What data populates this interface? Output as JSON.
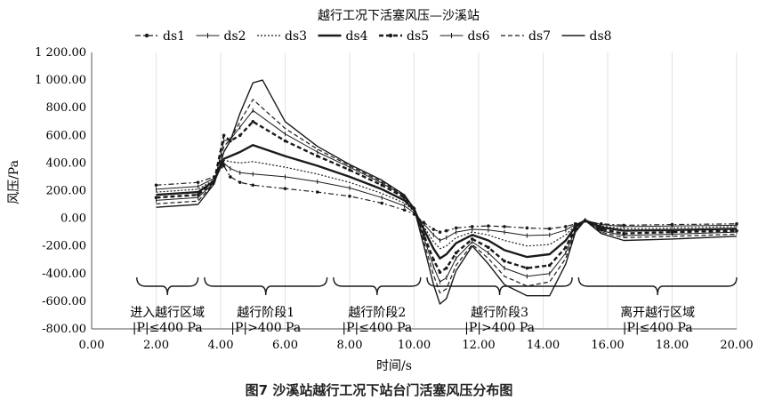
{
  "caption": "图7   沙溪站越行工况下站台门活塞风压分布图",
  "chart_data": {
    "type": "line",
    "title": "越行工况下活塞风压—沙溪站",
    "xlabel": "时间/s",
    "ylabel": "风压/Pa",
    "xlim": [
      0,
      20
    ],
    "ylim": [
      -800,
      1200
    ],
    "xticks": [
      "0.00",
      "2.00",
      "4.00",
      "6.00",
      "8.00",
      "10.00",
      "12.00",
      "14.00",
      "16.00",
      "18.00",
      "20.00"
    ],
    "yticks": [
      "-800.00",
      "-600.00",
      "-400.00",
      "-200.00",
      "0.00",
      "200.00",
      "400.00",
      "600.00",
      "800.00",
      "1 000.00",
      "1 200.00"
    ],
    "grid": "vertical",
    "legend_position": "top",
    "series": [
      {
        "name": "ds1",
        "style": "dashdot-marker",
        "x": [
          2.0,
          3.3,
          3.8,
          4.1,
          4.3,
          4.6,
          5.0,
          6.0,
          7.0,
          8.0,
          9.0,
          9.7,
          10.0,
          10.3,
          10.6,
          10.8,
          11.0,
          11.3,
          11.8,
          12.3,
          12.8,
          13.5,
          14.2,
          14.7,
          15.0,
          15.3,
          15.8,
          16.5,
          18.0,
          20.0
        ],
        "y": [
          240,
          260,
          300,
          380,
          300,
          260,
          240,
          215,
          190,
          160,
          110,
          60,
          30,
          -30,
          -80,
          -100,
          -90,
          -70,
          -60,
          -55,
          -60,
          -70,
          -75,
          -60,
          -40,
          -20,
          -40,
          -50,
          -45,
          -40
        ]
      },
      {
        "name": "ds2",
        "style": "solid-thin",
        "x": [
          2.0,
          3.3,
          3.8,
          4.1,
          4.3,
          4.6,
          5.0,
          6.0,
          7.0,
          8.0,
          9.0,
          9.7,
          10.0,
          10.3,
          10.6,
          10.8,
          11.0,
          11.3,
          11.8,
          12.3,
          12.8,
          13.5,
          14.2,
          14.7,
          15.0,
          15.3,
          15.8,
          16.5,
          18.0,
          20.0
        ],
        "y": [
          210,
          230,
          290,
          400,
          360,
          330,
          320,
          300,
          265,
          220,
          150,
          90,
          40,
          -40,
          -120,
          -160,
          -140,
          -100,
          -80,
          -85,
          -100,
          -125,
          -120,
          -85,
          -45,
          -15,
          -45,
          -60,
          -55,
          -50
        ]
      },
      {
        "name": "ds3",
        "style": "dotted",
        "x": [
          2.0,
          3.3,
          3.8,
          4.1,
          4.3,
          4.6,
          5.0,
          6.0,
          7.0,
          8.0,
          9.0,
          9.7,
          10.0,
          10.3,
          10.6,
          10.8,
          11.0,
          11.3,
          11.8,
          12.3,
          12.8,
          13.5,
          14.2,
          14.7,
          15.0,
          15.3,
          15.8,
          16.5,
          18.0,
          20.0
        ],
        "y": [
          190,
          210,
          280,
          420,
          410,
          400,
          410,
          370,
          320,
          260,
          180,
          110,
          50,
          -60,
          -170,
          -220,
          -200,
          -140,
          -100,
          -120,
          -160,
          -200,
          -190,
          -120,
          -50,
          -15,
          -55,
          -75,
          -70,
          -60
        ]
      },
      {
        "name": "ds4",
        "style": "solid-bold",
        "x": [
          2.0,
          3.3,
          3.8,
          4.1,
          4.3,
          4.6,
          5.0,
          6.0,
          7.0,
          8.0,
          9.0,
          9.7,
          10.0,
          10.3,
          10.6,
          10.8,
          11.0,
          11.3,
          11.8,
          12.3,
          12.8,
          13.5,
          14.2,
          14.7,
          15.0,
          15.3,
          15.8,
          16.5,
          18.0,
          20.0
        ],
        "y": [
          170,
          190,
          270,
          430,
          450,
          480,
          530,
          450,
          380,
          300,
          210,
          130,
          60,
          -80,
          -220,
          -290,
          -260,
          -180,
          -120,
          -160,
          -230,
          -280,
          -260,
          -160,
          -60,
          -15,
          -65,
          -90,
          -85,
          -75
        ]
      },
      {
        "name": "ds5",
        "style": "dashed-marker-bold",
        "x": [
          2.0,
          3.3,
          3.8,
          4.1,
          4.3,
          4.6,
          5.0,
          6.0,
          7.0,
          8.0,
          9.0,
          9.7,
          10.0,
          10.3,
          10.6,
          10.8,
          11.0,
          11.3,
          11.8,
          12.3,
          12.8,
          13.5,
          14.2,
          14.7,
          15.0,
          15.3,
          15.8,
          16.5,
          18.0,
          20.0
        ],
        "y": [
          150,
          170,
          270,
          600,
          560,
          600,
          700,
          560,
          450,
          350,
          240,
          150,
          70,
          -120,
          -300,
          -390,
          -360,
          -250,
          -150,
          -210,
          -310,
          -360,
          -340,
          -210,
          -70,
          -15,
          -80,
          -110,
          -100,
          -90
        ]
      },
      {
        "name": "ds6",
        "style": "solid-marker",
        "x": [
          2.0,
          3.3,
          3.8,
          4.1,
          4.3,
          4.6,
          5.0,
          6.0,
          7.0,
          8.0,
          9.0,
          9.7,
          10.0,
          10.3,
          10.6,
          10.8,
          11.0,
          11.3,
          11.8,
          12.3,
          12.8,
          13.5,
          14.2,
          14.7,
          15.0,
          15.3,
          15.8,
          16.5,
          18.0,
          20.0
        ],
        "y": [
          130,
          150,
          260,
          560,
          570,
          660,
          780,
          610,
          480,
          370,
          255,
          160,
          70,
          -140,
          -350,
          -460,
          -430,
          -290,
          -170,
          -250,
          -360,
          -420,
          -400,
          -250,
          -80,
          -15,
          -90,
          -125,
          -115,
          -100
        ]
      },
      {
        "name": "ds7",
        "style": "dashed",
        "x": [
          2.0,
          3.3,
          3.8,
          4.1,
          4.3,
          4.6,
          5.0,
          6.0,
          7.0,
          8.0,
          9.0,
          9.7,
          10.0,
          10.3,
          10.6,
          10.8,
          11.0,
          11.3,
          11.8,
          12.3,
          12.8,
          13.5,
          14.2,
          14.7,
          15.0,
          15.3,
          15.8,
          16.5,
          18.0,
          20.0
        ],
        "y": [
          105,
          125,
          255,
          520,
          570,
          700,
          860,
          650,
          500,
          380,
          265,
          165,
          70,
          -170,
          -410,
          -540,
          -510,
          -340,
          -190,
          -290,
          -420,
          -490,
          -460,
          -290,
          -90,
          -15,
          -100,
          -140,
          -130,
          -115
        ]
      },
      {
        "name": "ds8",
        "style": "solid",
        "x": [
          2.0,
          3.3,
          3.8,
          4.1,
          4.3,
          4.6,
          5.0,
          5.3,
          6.0,
          7.0,
          8.0,
          9.0,
          9.7,
          10.0,
          10.3,
          10.6,
          10.8,
          11.0,
          11.3,
          11.8,
          12.3,
          12.8,
          13.5,
          14.2,
          14.7,
          15.0,
          15.3,
          15.8,
          16.5,
          18.0,
          20.0
        ],
        "y": [
          80,
          100,
          250,
          480,
          560,
          760,
          980,
          1000,
          700,
          520,
          390,
          275,
          170,
          70,
          -200,
          -480,
          -620,
          -580,
          -380,
          -200,
          -330,
          -480,
          -560,
          -560,
          -330,
          -100,
          -15,
          -110,
          -160,
          -150,
          -130
        ]
      }
    ],
    "annotations": [
      {
        "label": "进入越行区域",
        "condition": "|P|≤400 Pa",
        "x_start": 1.4,
        "x_end": 3.3
      },
      {
        "label": "越行阶段1",
        "condition": "|P|>400 Pa",
        "x_start": 3.5,
        "x_end": 7.3
      },
      {
        "label": "越行阶段2",
        "condition": "|P|≤400 Pa",
        "x_start": 7.5,
        "x_end": 10.2
      },
      {
        "label": "越行阶段3",
        "condition": "|P|>400 Pa",
        "x_start": 10.4,
        "x_end": 14.9
      },
      {
        "label": "离开越行区域",
        "condition": "|P|≤400 Pa",
        "x_start": 15.1,
        "x_end": 20.0
      }
    ]
  }
}
